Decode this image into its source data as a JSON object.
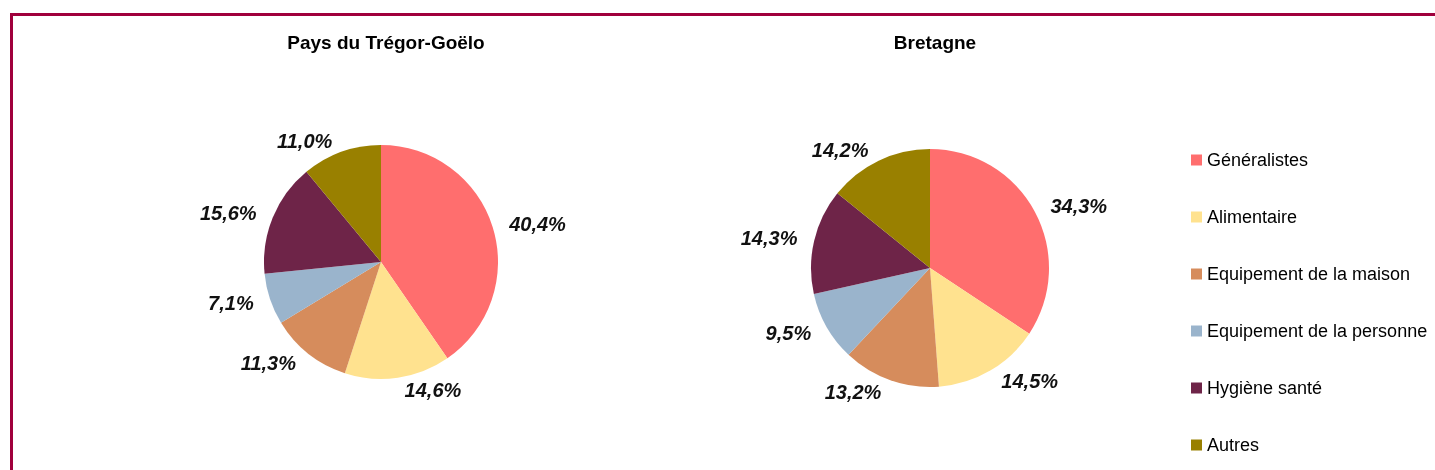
{
  "chart_data": {
    "type": "pie",
    "categories": [
      "Généralistes",
      "Alimentaire",
      "Equipement de la maison",
      "Equipement de la personne",
      "Hygiène santé",
      "Autres"
    ],
    "colors": [
      "#ff6e6e",
      "#ffe28f",
      "#d68c5c",
      "#9ab4cc",
      "#6e2448",
      "#998000"
    ],
    "legend": "right",
    "series": [
      {
        "name": "Pays du Trégor-Goëlo",
        "values": [
          40.4,
          14.6,
          11.3,
          7.1,
          15.6,
          11.0
        ],
        "value_labels": [
          "40,4%",
          "14,6%",
          "11,3%",
          "7,1%",
          "15,6%",
          "11,0%"
        ]
      },
      {
        "name": "Bretagne",
        "values": [
          34.3,
          14.5,
          13.2,
          9.5,
          14.3,
          14.2
        ],
        "value_labels": [
          "34,3%",
          "14,5%",
          "13,2%",
          "9,5%",
          "14,3%",
          "14,2%"
        ]
      }
    ]
  }
}
